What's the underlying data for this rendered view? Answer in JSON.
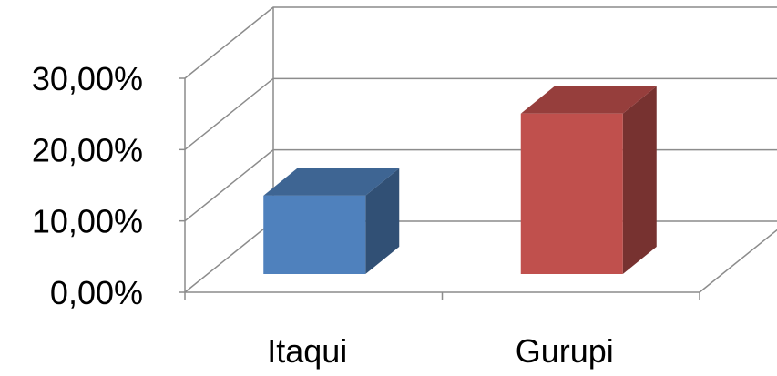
{
  "chart_data": {
    "type": "bar",
    "categories": [
      "Itaqui",
      "Gurupi"
    ],
    "values": [
      11.0,
      22.5
    ],
    "ylim": [
      0,
      30
    ],
    "yticks": [
      0,
      10,
      20,
      30
    ],
    "ytick_labels": [
      "0,00%",
      "10,00%",
      "20,00%",
      "30,00%"
    ],
    "title": "",
    "xlabel": "",
    "ylabel": "",
    "grid": true,
    "three_d": true,
    "bar_colors": [
      "#4F81BD",
      "#C0504D"
    ]
  }
}
